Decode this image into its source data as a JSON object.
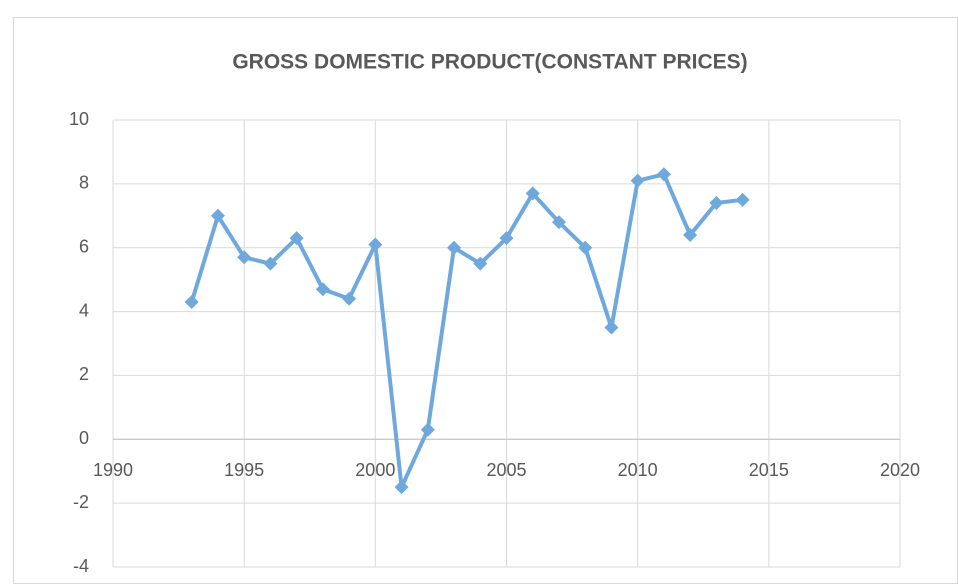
{
  "chart_data": {
    "type": "line",
    "title": "GROSS DOMESTIC PRODUCT(CONSTANT PRICES)",
    "x": [
      1993,
      1994,
      1995,
      1996,
      1997,
      1998,
      1999,
      2000,
      2001,
      2002,
      2003,
      2004,
      2005,
      2006,
      2007,
      2008,
      2009,
      2010,
      2011,
      2012,
      2013,
      2014
    ],
    "series": [
      {
        "name": "GDP",
        "color": "#6fa8dc",
        "values": [
          4.3,
          7.0,
          5.7,
          5.5,
          6.3,
          4.7,
          4.4,
          6.1,
          -1.5,
          0.3,
          6.0,
          5.5,
          6.3,
          7.7,
          6.8,
          6.0,
          3.5,
          8.1,
          8.3,
          6.4,
          7.4,
          7.5
        ]
      }
    ],
    "xlim": [
      1990,
      2020
    ],
    "xticks": [
      1990,
      1995,
      2000,
      2005,
      2010,
      2015,
      2020
    ],
    "ylim": [
      -4,
      10
    ],
    "yticks": [
      -4,
      -2,
      0,
      2,
      4,
      6,
      8,
      10
    ],
    "grid": true
  }
}
